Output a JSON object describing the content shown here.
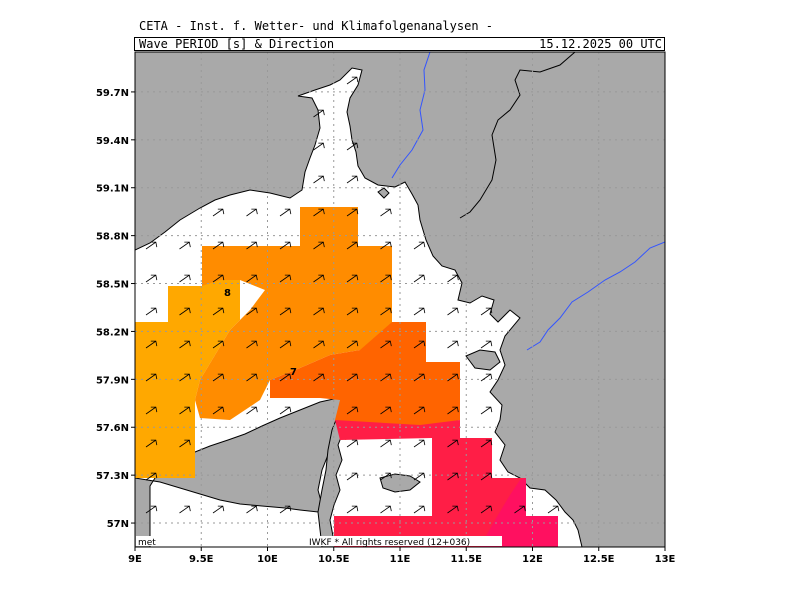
{
  "header": {
    "institute": "CETA - Inst. f. Wetter- und Klimafolgenanalysen -",
    "title": "Wave_PERIOD_[s]_&_Direction",
    "datetime": "15.12.2025 00 UTC"
  },
  "map": {
    "lon_range": [
      9.0,
      13.0
    ],
    "lat_range": [
      56.85,
      59.95
    ],
    "lon_ticks": [
      "9E",
      "9.5E",
      "10E",
      "10.5E",
      "11E",
      "11.5E",
      "12E",
      "12.5E",
      "13E"
    ],
    "lat_ticks": [
      "57N",
      "57.3N",
      "57.6N",
      "57.9N",
      "58.2N",
      "58.5N",
      "58.8N",
      "59.1N",
      "59.4N",
      "59.7N"
    ],
    "contour_labels": [
      "8",
      "7"
    ],
    "colors": {
      "land": "#a9a9a9",
      "sea": "#ffffff",
      "period_8_plus": "#ffa800",
      "period_7_8": "#ff8c00",
      "period_6_7": "#ff6400",
      "period_5_6": "#ff1e46",
      "period_4_5": "#ff1060",
      "river": "#3355ff"
    },
    "footer_left": "met",
    "footer_center": "IWKF * All rights reserved (12+036)"
  }
}
